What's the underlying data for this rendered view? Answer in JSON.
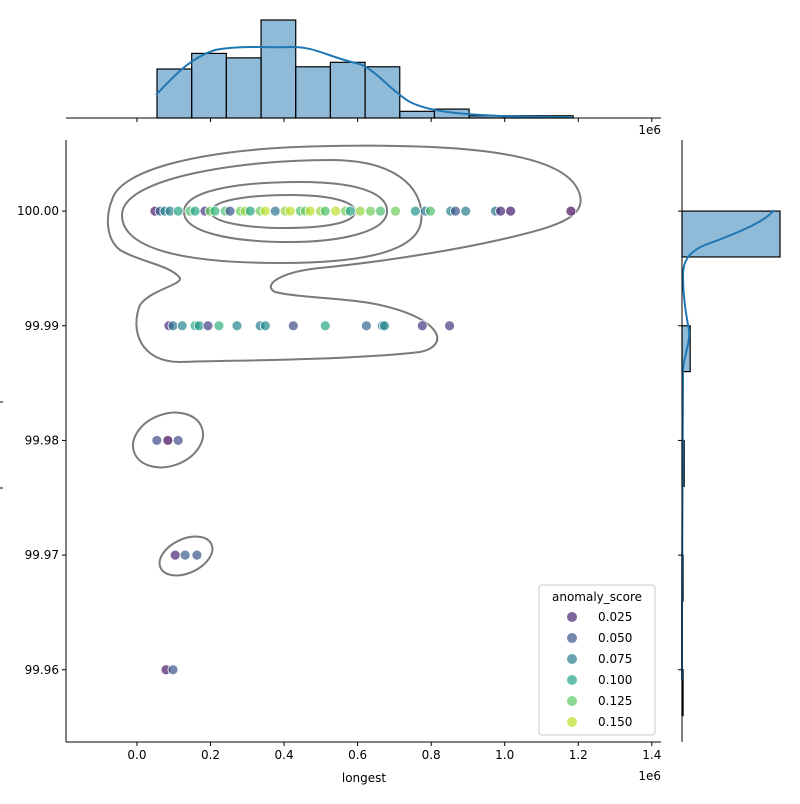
{
  "chart_data": {
    "type": "scatter",
    "subtype": "jointplot-with-kde-contours-and-marginal-histograms",
    "xlabel": "longest",
    "x_offset_label": "1e6",
    "top_margin_offset_label": "1e6",
    "xlim": [
      -0.193,
      1.425
    ],
    "ylim": [
      99.9537,
      100.0062
    ],
    "x_ticks": [
      "0.0",
      "0.2",
      "0.4",
      "0.6",
      "0.8",
      "1.0",
      "1.2",
      "1.4"
    ],
    "x_tick_values": [
      0.0,
      0.2,
      0.4,
      0.6,
      0.8,
      1.0,
      1.2,
      1.4
    ],
    "y_ticks": [
      "99.96",
      "99.97",
      "99.98",
      "99.99",
      "100.00"
    ],
    "y_tick_values": [
      99.96,
      99.97,
      99.98,
      99.99,
      100.0
    ],
    "grid": false,
    "hue": {
      "name": "anomaly_score",
      "colormap": "viridis",
      "range": [
        0.01,
        0.165
      ],
      "alpha": 0.7
    },
    "legend": {
      "title": "anomaly_score",
      "placement": "lower-right",
      "entries": [
        "0.025",
        "0.050",
        "0.075",
        "0.100",
        "0.125",
        "0.150"
      ],
      "entry_values": [
        0.025,
        0.05,
        0.075,
        0.1,
        0.125,
        0.15
      ]
    },
    "points": [
      {
        "x": 0.049,
        "y": 100.0,
        "score": 0.02
      },
      {
        "x": 0.063,
        "y": 100.0,
        "score": 0.06
      },
      {
        "x": 0.076,
        "y": 100.0,
        "score": 0.08
      },
      {
        "x": 0.09,
        "y": 100.0,
        "score": 0.075
      },
      {
        "x": 0.112,
        "y": 100.0,
        "score": 0.1
      },
      {
        "x": 0.144,
        "y": 100.0,
        "score": 0.12
      },
      {
        "x": 0.158,
        "y": 100.0,
        "score": 0.1
      },
      {
        "x": 0.185,
        "y": 100.0,
        "score": 0.035
      },
      {
        "x": 0.199,
        "y": 100.0,
        "score": 0.13
      },
      {
        "x": 0.212,
        "y": 100.0,
        "score": 0.11
      },
      {
        "x": 0.24,
        "y": 100.0,
        "score": 0.12
      },
      {
        "x": 0.253,
        "y": 100.0,
        "score": 0.05
      },
      {
        "x": 0.281,
        "y": 100.0,
        "score": 0.13
      },
      {
        "x": 0.294,
        "y": 100.0,
        "score": 0.14
      },
      {
        "x": 0.308,
        "y": 100.0,
        "score": 0.1
      },
      {
        "x": 0.335,
        "y": 100.0,
        "score": 0.13
      },
      {
        "x": 0.349,
        "y": 100.0,
        "score": 0.15
      },
      {
        "x": 0.376,
        "y": 100.0,
        "score": 0.07
      },
      {
        "x": 0.403,
        "y": 100.0,
        "score": 0.14
      },
      {
        "x": 0.417,
        "y": 100.0,
        "score": 0.15
      },
      {
        "x": 0.444,
        "y": 100.0,
        "score": 0.12
      },
      {
        "x": 0.458,
        "y": 100.0,
        "score": 0.13
      },
      {
        "x": 0.471,
        "y": 100.0,
        "score": 0.15
      },
      {
        "x": 0.499,
        "y": 100.0,
        "score": 0.14
      },
      {
        "x": 0.512,
        "y": 100.0,
        "score": 0.12
      },
      {
        "x": 0.54,
        "y": 100.0,
        "score": 0.15
      },
      {
        "x": 0.567,
        "y": 100.0,
        "score": 0.13
      },
      {
        "x": 0.58,
        "y": 100.0,
        "score": 0.1
      },
      {
        "x": 0.607,
        "y": 100.0,
        "score": 0.14
      },
      {
        "x": 0.635,
        "y": 100.0,
        "score": 0.13
      },
      {
        "x": 0.662,
        "y": 100.0,
        "score": 0.12
      },
      {
        "x": 0.703,
        "y": 100.0,
        "score": 0.13
      },
      {
        "x": 0.757,
        "y": 100.0,
        "score": 0.09
      },
      {
        "x": 0.784,
        "y": 100.0,
        "score": 0.07
      },
      {
        "x": 0.798,
        "y": 100.0,
        "score": 0.12
      },
      {
        "x": 0.853,
        "y": 100.0,
        "score": 0.075
      },
      {
        "x": 0.866,
        "y": 100.0,
        "score": 0.05
      },
      {
        "x": 0.894,
        "y": 100.0,
        "score": 0.075
      },
      {
        "x": 0.975,
        "y": 100.0,
        "score": 0.07
      },
      {
        "x": 0.989,
        "y": 100.0,
        "score": 0.025
      },
      {
        "x": 1.016,
        "y": 100.0,
        "score": 0.02
      },
      {
        "x": 1.18,
        "y": 100.0,
        "score": 0.015
      },
      {
        "x": 0.087,
        "y": 99.99,
        "score": 0.025
      },
      {
        "x": 0.098,
        "y": 99.99,
        "score": 0.07
      },
      {
        "x": 0.123,
        "y": 99.99,
        "score": 0.08
      },
      {
        "x": 0.158,
        "y": 99.99,
        "score": 0.105
      },
      {
        "x": 0.169,
        "y": 99.99,
        "score": 0.09
      },
      {
        "x": 0.193,
        "y": 99.99,
        "score": 0.04
      },
      {
        "x": 0.223,
        "y": 99.99,
        "score": 0.11
      },
      {
        "x": 0.272,
        "y": 99.99,
        "score": 0.08
      },
      {
        "x": 0.335,
        "y": 99.99,
        "score": 0.075
      },
      {
        "x": 0.349,
        "y": 99.99,
        "score": 0.085
      },
      {
        "x": 0.425,
        "y": 99.99,
        "score": 0.045
      },
      {
        "x": 0.512,
        "y": 99.99,
        "score": 0.1
      },
      {
        "x": 0.624,
        "y": 99.99,
        "score": 0.06
      },
      {
        "x": 0.667,
        "y": 99.99,
        "score": 0.075
      },
      {
        "x": 0.673,
        "y": 99.99,
        "score": 0.08
      },
      {
        "x": 0.776,
        "y": 99.99,
        "score": 0.035
      },
      {
        "x": 0.85,
        "y": 99.99,
        "score": 0.035
      },
      {
        "x": 0.054,
        "y": 99.98,
        "score": 0.045
      },
      {
        "x": 0.084,
        "y": 99.98,
        "score": 0.012
      },
      {
        "x": 0.112,
        "y": 99.98,
        "score": 0.045
      },
      {
        "x": 0.104,
        "y": 99.97,
        "score": 0.025
      },
      {
        "x": 0.131,
        "y": 99.97,
        "score": 0.055
      },
      {
        "x": 0.163,
        "y": 99.97,
        "score": 0.05
      },
      {
        "x": 0.079,
        "y": 99.96,
        "score": 0.02
      },
      {
        "x": 0.098,
        "y": 99.96,
        "score": 0.05
      }
    ],
    "marginal_x_histogram": {
      "bin_start": 0.0545,
      "bin_width": 0.0943,
      "counts": [
        22,
        29,
        27,
        44,
        23,
        25,
        23,
        3,
        4,
        1,
        1,
        1
      ],
      "color": "#1f77b4",
      "kde": true
    },
    "marginal_y_histogram": {
      "bins": [
        [
          99.996,
          100.0
        ],
        [
          99.986,
          99.99
        ],
        [
          99.976,
          99.98
        ],
        [
          99.966,
          99.97
        ],
        [
          99.956,
          99.96
        ]
      ],
      "counts": [
        180,
        15,
        4,
        2,
        2
      ],
      "color": "#1f77b4",
      "kde": true
    }
  }
}
